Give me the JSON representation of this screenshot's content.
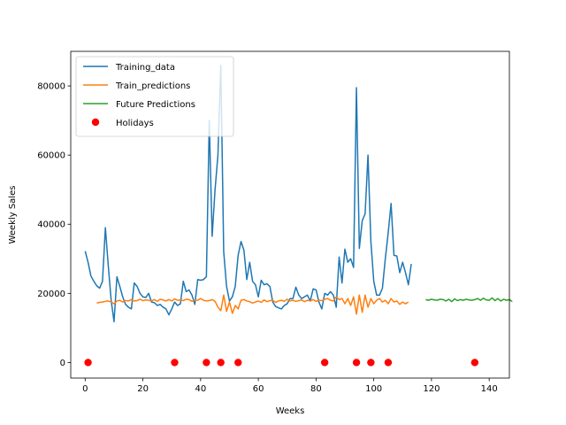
{
  "chart_data": {
    "type": "line",
    "title": "",
    "xlabel": "Weeks",
    "ylabel": "Weekly Sales",
    "xlim": [
      -5,
      147
    ],
    "ylim": [
      -4500,
      90000
    ],
    "xticks": [
      0,
      20,
      40,
      60,
      80,
      100,
      120,
      140
    ],
    "yticks": [
      0,
      20000,
      40000,
      60000,
      80000
    ],
    "grid": false,
    "legend_position": "top-left",
    "series": [
      {
        "name": "Training_data",
        "kind": "line",
        "color": "#1f77b4",
        "x_start": 0,
        "values": [
          32200,
          29000,
          25000,
          23500,
          22200,
          21500,
          23500,
          39000,
          28000,
          18000,
          11800,
          24800,
          22000,
          19000,
          16800,
          16000,
          15500,
          23000,
          22000,
          20000,
          19000,
          18800,
          20000,
          17500,
          17300,
          16500,
          16800,
          16000,
          15500,
          13800,
          15500,
          17500,
          16500,
          17000,
          23500,
          20500,
          21000,
          19500,
          16800,
          24000,
          23800,
          24000,
          24800,
          70000,
          36500,
          50000,
          60000,
          86000,
          32000,
          22000,
          17800,
          19000,
          22000,
          31000,
          35000,
          32500,
          24000,
          29000,
          23500,
          22500,
          19000,
          23800,
          22500,
          22800,
          22000,
          17500,
          16200,
          15800,
          15500,
          16500,
          17000,
          18500,
          18500,
          21800,
          19500,
          18500,
          19000,
          19500,
          17800,
          21300,
          21000,
          17500,
          15500,
          20000,
          19500,
          20500,
          19500,
          16000,
          30500,
          23000,
          32800,
          29000,
          30000,
          27500,
          79500,
          33000,
          41000,
          43000,
          60000,
          35000,
          23500,
          19500,
          19500,
          21500,
          30000,
          37500,
          46000,
          31000,
          30800,
          26000,
          29000,
          26000,
          22500,
          28500
        ]
      },
      {
        "name": "Train_predictions",
        "kind": "line",
        "color": "#ff7f0e",
        "x_start": 4,
        "values": [
          17200,
          17400,
          17500,
          17700,
          17800,
          17500,
          17000,
          17800,
          18000,
          17500,
          17900,
          17800,
          18200,
          17800,
          17900,
          18300,
          17900,
          18100,
          18000,
          17800,
          18200,
          17700,
          18300,
          18100,
          17800,
          18200,
          17800,
          18400,
          18000,
          18100,
          17900,
          18300,
          18200,
          17700,
          18100,
          18000,
          18500,
          18000,
          17800,
          17900,
          18200,
          17700,
          16000,
          15000,
          19500,
          14800,
          17500,
          14200,
          16500,
          15500,
          18000,
          18200,
          17800,
          17600,
          17200,
          17500,
          17800,
          17400,
          18100,
          17600,
          17900,
          18000,
          17400,
          17800,
          18000,
          17700,
          18300,
          17800,
          18000,
          17700,
          17900,
          18100,
          17600,
          18000,
          17800,
          18200,
          17700,
          18000,
          17900,
          18300,
          18500,
          18000,
          17800,
          19000,
          18200,
          18500,
          17000,
          18500,
          16500,
          19000,
          14000,
          19500,
          14500,
          19500,
          16000,
          18500,
          17000,
          18000,
          18500,
          17500,
          18000,
          17000,
          18500,
          17500,
          17800,
          16800,
          17500,
          17000,
          17500
        ]
      },
      {
        "name": "Future Predictions",
        "kind": "line",
        "color": "#2ca02c",
        "x_start": 118,
        "values": [
          18200,
          18000,
          18300,
          18100,
          18000,
          18300,
          18200,
          17800,
          18300,
          17600,
          18400,
          17900,
          18200,
          18000,
          18300,
          18100,
          18000,
          18200,
          18500,
          18000,
          18600,
          18100,
          18000,
          18700,
          17900,
          18500,
          17800,
          18300,
          18000,
          18200,
          17600
        ]
      },
      {
        "name": "Holidays",
        "kind": "scatter",
        "color": "#ff0000",
        "x": [
          1,
          31,
          42,
          47,
          53,
          83,
          94,
          99,
          105,
          135
        ],
        "y": [
          0,
          0,
          0,
          0,
          0,
          0,
          0,
          0,
          0,
          0
        ]
      }
    ]
  }
}
